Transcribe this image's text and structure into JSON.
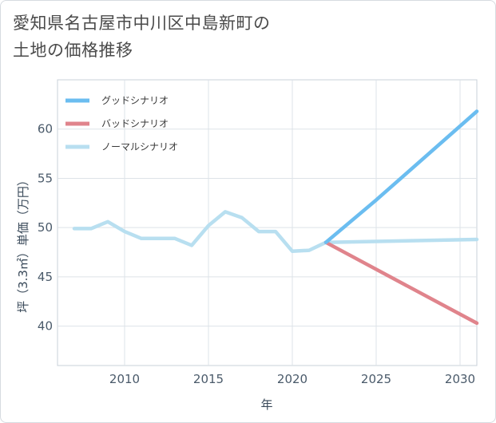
{
  "title_line1": "愛知県名古屋市中川区中島新町の",
  "title_line2": "土地の価格推移",
  "chart_data": {
    "type": "line",
    "xlabel": "年",
    "ylabel": "坪（3.3㎡）単価（万円）",
    "xlim": [
      2006,
      2031
    ],
    "ylim": [
      36,
      65
    ],
    "x_ticks": [
      2010,
      2015,
      2020,
      2025,
      2030
    ],
    "y_ticks": [
      40,
      45,
      50,
      55,
      60
    ],
    "grid": true,
    "legend_position": "top-left",
    "series": [
      {
        "name": "グッドシナリオ",
        "color": "#6bbdf0",
        "x": [
          2022,
          2025,
          2031
        ],
        "y": [
          48.5,
          52.8,
          61.8
        ]
      },
      {
        "name": "バッドシナリオ",
        "color": "#e0848c",
        "x": [
          2022,
          2031
        ],
        "y": [
          48.5,
          40.3
        ]
      },
      {
        "name": "ノーマルシナリオ",
        "color": "#b8dff0",
        "x": [
          2007,
          2008,
          2009,
          2010,
          2011,
          2012,
          2013,
          2014,
          2015,
          2016,
          2017,
          2018,
          2019,
          2020,
          2021,
          2022,
          2025,
          2031
        ],
        "y": [
          49.9,
          49.9,
          50.6,
          49.6,
          48.9,
          48.9,
          48.9,
          48.2,
          50.2,
          51.6,
          51.0,
          49.6,
          49.6,
          47.6,
          47.7,
          48.5,
          48.6,
          48.8
        ]
      }
    ]
  }
}
